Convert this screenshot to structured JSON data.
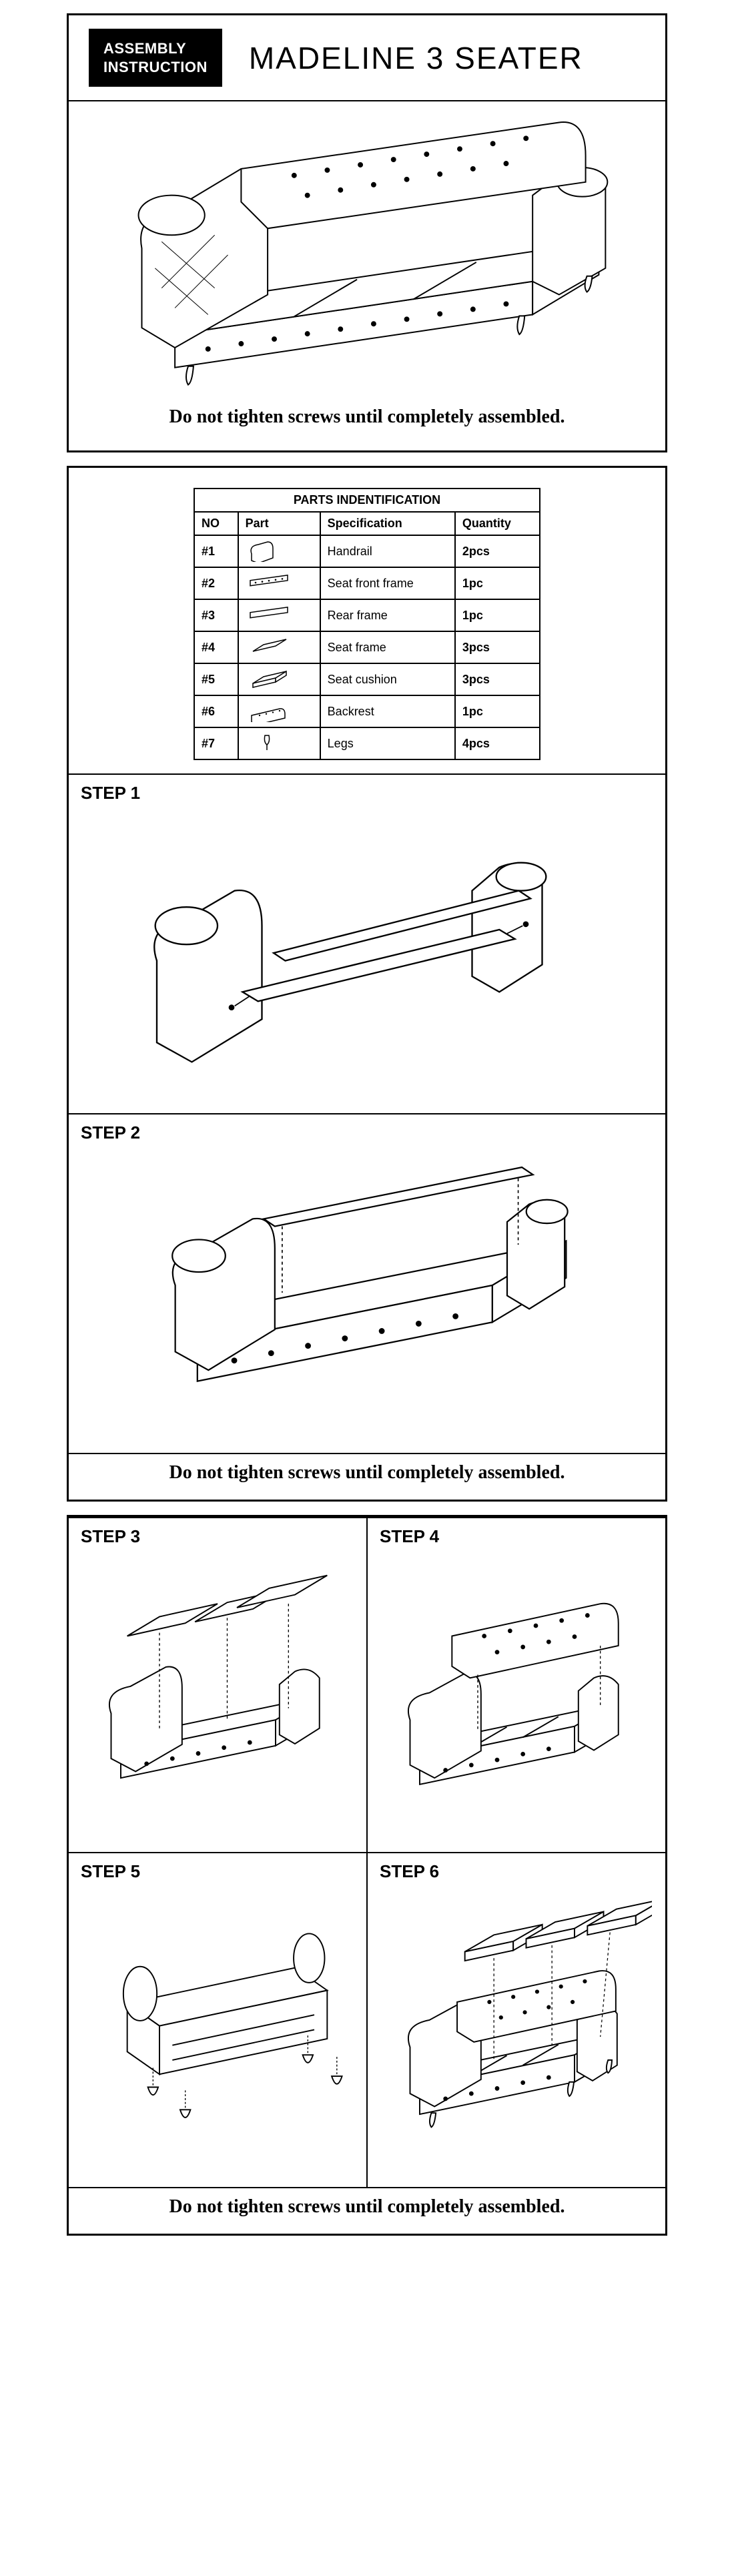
{
  "header": {
    "badge_line1": "ASSEMBLY",
    "badge_line2": "INSTRUCTION",
    "title": "MADELINE 3 SEATER"
  },
  "warning": "Do not tighten screws until completely assembled.",
  "parts_table": {
    "title": "PARTS  INDENTIFICATION",
    "headers": {
      "no": "NO",
      "part": "Part",
      "spec": "Specification",
      "qty": "Quantity"
    },
    "rows": [
      {
        "no": "#1",
        "spec": "Handrail",
        "qty": "2pcs",
        "icon": "handrail"
      },
      {
        "no": "#2",
        "spec": "Seat front frame",
        "qty": "1pc",
        "icon": "bar-dots"
      },
      {
        "no": "#3",
        "spec": "Rear frame",
        "qty": "1pc",
        "icon": "bar"
      },
      {
        "no": "#4",
        "spec": "Seat frame",
        "qty": "3pcs",
        "icon": "panel"
      },
      {
        "no": "#5",
        "spec": "Seat cushion",
        "qty": "3pcs",
        "icon": "cushion"
      },
      {
        "no": "#6",
        "spec": "Backrest",
        "qty": "1pc",
        "icon": "backrest"
      },
      {
        "no": "#7",
        "spec": "Legs",
        "qty": "4pcs",
        "icon": "leg"
      }
    ]
  },
  "steps": {
    "s1": "STEP 1",
    "s2": "STEP 2",
    "s3": "STEP 3",
    "s4": "STEP 4",
    "s5": "STEP 5",
    "s6": "STEP 6"
  },
  "colors": {
    "line": "#000000",
    "fill_light": "#ffffff",
    "fill_grey": "#efefef"
  }
}
